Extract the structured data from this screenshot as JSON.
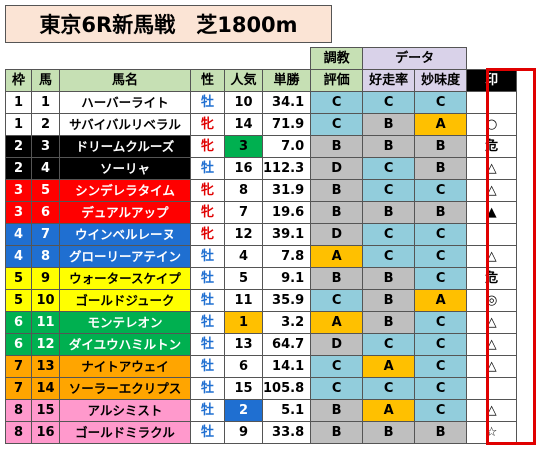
{
  "title": "東京6R新馬戦　芝1800m",
  "header": {
    "group_chokyo": "調教",
    "group_data": "データ",
    "waku": "枠",
    "uma": "馬",
    "bamei": "馬名",
    "sei": "性",
    "ninki": "人気",
    "tansho": "単勝",
    "hyoka": "評価",
    "kosoritsu": "好走率",
    "myosodo": "妙味度",
    "shirushi": "印"
  },
  "colors": {
    "waku1": "#ffffff",
    "waku2": "#000000",
    "waku3": "#ff0000",
    "waku4": "#1f6fd1",
    "waku5": "#ffff00",
    "waku6": "#00b050",
    "waku7": "#ffa500",
    "waku8": "#ff99cc",
    "grade_c": "#92cddc",
    "grade_b": "#bfbfbf",
    "grade_a": "#ffc000",
    "grade_d": "#bfbfbf",
    "ninki_top3": "#00b050",
    "ninki_4_9": "#f2f2f2"
  },
  "rows": [
    {
      "waku": "1",
      "uma": "1",
      "name": "ハーバーライト",
      "sei": "牡",
      "ninki": "10",
      "odds": "34.1",
      "hyoka": "C",
      "kosoritsu": "C",
      "myosodo": "C",
      "mark": ""
    },
    {
      "waku": "1",
      "uma": "2",
      "name": "サバイバルリベラル",
      "sei": "牝",
      "ninki": "14",
      "odds": "71.9",
      "hyoka": "C",
      "kosoritsu": "B",
      "myosodo": "A",
      "mark": "○"
    },
    {
      "waku": "2",
      "uma": "3",
      "name": "ドリームクルーズ",
      "sei": "牝",
      "ninki": "3",
      "odds": "7.0",
      "hyoka": "B",
      "kosoritsu": "B",
      "myosodo": "B",
      "mark": "危"
    },
    {
      "waku": "2",
      "uma": "4",
      "name": "ソーリャ",
      "sei": "牡",
      "ninki": "16",
      "odds": "112.3",
      "hyoka": "D",
      "kosoritsu": "C",
      "myosodo": "B",
      "mark": "△"
    },
    {
      "waku": "3",
      "uma": "5",
      "name": "シンデレラタイム",
      "sei": "牝",
      "ninki": "8",
      "odds": "31.9",
      "hyoka": "B",
      "kosoritsu": "C",
      "myosodo": "C",
      "mark": "△"
    },
    {
      "waku": "3",
      "uma": "6",
      "name": "デュアルアップ",
      "sei": "牝",
      "ninki": "7",
      "odds": "19.6",
      "hyoka": "B",
      "kosoritsu": "B",
      "myosodo": "B",
      "mark": "▲"
    },
    {
      "waku": "4",
      "uma": "7",
      "name": "ウインベルレーヌ",
      "sei": "牝",
      "ninki": "12",
      "odds": "39.1",
      "hyoka": "D",
      "kosoritsu": "C",
      "myosodo": "C",
      "mark": ""
    },
    {
      "waku": "4",
      "uma": "8",
      "name": "グローリーアテイン",
      "sei": "牡",
      "ninki": "4",
      "odds": "7.8",
      "hyoka": "A",
      "kosoritsu": "C",
      "myosodo": "C",
      "mark": "△"
    },
    {
      "waku": "5",
      "uma": "9",
      "name": "ウォータースケイプ",
      "sei": "牡",
      "ninki": "5",
      "odds": "9.1",
      "hyoka": "B",
      "kosoritsu": "B",
      "myosodo": "C",
      "mark": "危"
    },
    {
      "waku": "5",
      "uma": "10",
      "name": "ゴールドジューク",
      "sei": "牡",
      "ninki": "11",
      "odds": "35.9",
      "hyoka": "C",
      "kosoritsu": "B",
      "myosodo": "A",
      "mark": "◎"
    },
    {
      "waku": "6",
      "uma": "11",
      "name": "モンテレオン",
      "sei": "牡",
      "ninki": "1",
      "odds": "3.2",
      "hyoka": "A",
      "kosoritsu": "B",
      "myosodo": "C",
      "mark": "△"
    },
    {
      "waku": "6",
      "uma": "12",
      "name": "ダイユウハミルトン",
      "sei": "牡",
      "ninki": "13",
      "odds": "64.7",
      "hyoka": "D",
      "kosoritsu": "C",
      "myosodo": "C",
      "mark": "△"
    },
    {
      "waku": "7",
      "uma": "13",
      "name": "ナイトアウェイ",
      "sei": "牡",
      "ninki": "6",
      "odds": "14.1",
      "hyoka": "C",
      "kosoritsu": "A",
      "myosodo": "C",
      "mark": "△"
    },
    {
      "waku": "7",
      "uma": "14",
      "name": "ソーラーエクリプス",
      "sei": "牡",
      "ninki": "15",
      "odds": "105.8",
      "hyoka": "C",
      "kosoritsu": "C",
      "myosodo": "C",
      "mark": ""
    },
    {
      "waku": "8",
      "uma": "15",
      "name": "アルシミスト",
      "sei": "牡",
      "ninki": "2",
      "odds": "5.1",
      "hyoka": "B",
      "kosoritsu": "A",
      "myosodo": "C",
      "mark": "△"
    },
    {
      "waku": "8",
      "uma": "16",
      "name": "ゴールドミラクル",
      "sei": "牡",
      "ninki": "9",
      "odds": "33.8",
      "hyoka": "B",
      "kosoritsu": "B",
      "myosodo": "B",
      "mark": "☆"
    }
  ]
}
